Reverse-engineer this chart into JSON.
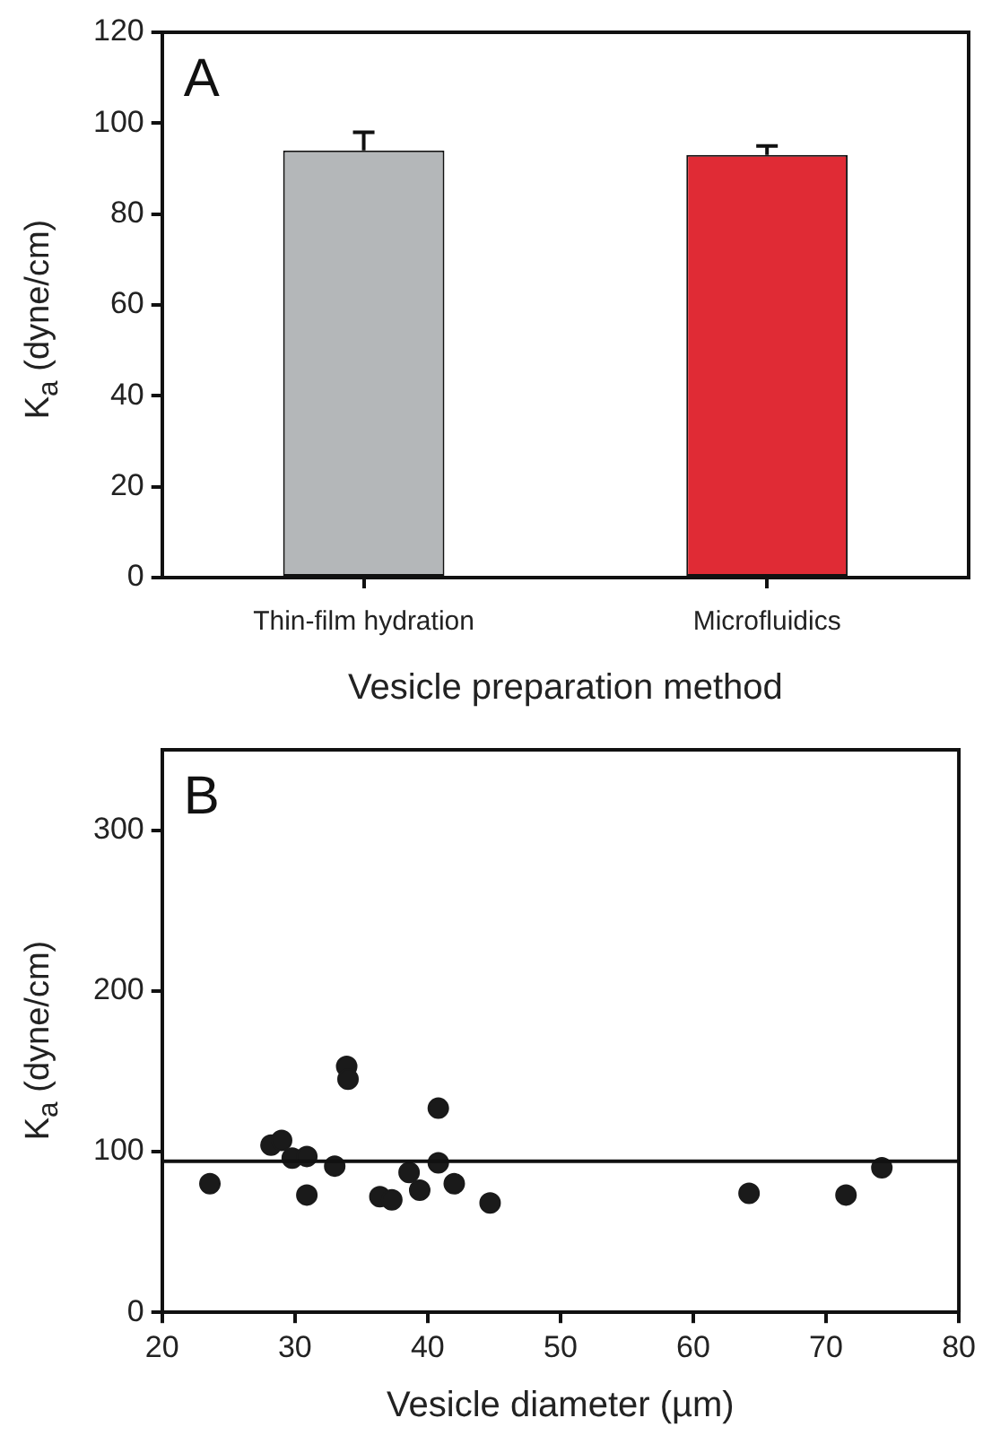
{
  "chart_data": [
    {
      "type": "bar",
      "categories": [
        "Thin-film hydration",
        "Microfluidics"
      ],
      "values": [
        94,
        93
      ],
      "colors": [
        "#b4b7b9",
        "#e02b35"
      ],
      "errors": [
        [
          94,
          98
        ],
        [
          93,
          95
        ]
      ],
      "ylim": [
        0,
        120
      ],
      "yticks": [
        0,
        20,
        40,
        60,
        80,
        100,
        120
      ],
      "xlabel": "Vesicle preparation method",
      "ylabel": "K$_{a}$ (dyne/cm)",
      "annotations": [
        "A"
      ]
    },
    {
      "type": "scatter",
      "x": [
        23.6,
        28.2,
        29.0,
        29.8,
        30.9,
        30.9,
        33.0,
        33.9,
        34.0,
        36.4,
        37.3,
        38.6,
        39.4,
        40.8,
        40.8,
        42.0,
        44.7,
        64.2,
        71.5,
        74.2
      ],
      "values": [
        80,
        104,
        107,
        96,
        97,
        73,
        91,
        153,
        145,
        72,
        70,
        87,
        76,
        127,
        93,
        80,
        68,
        74,
        73,
        90
      ],
      "color": "#1a1a1a",
      "marker": "circle",
      "xlim": [
        20,
        80
      ],
      "xticks": [
        20,
        30,
        40,
        50,
        60,
        70,
        80
      ],
      "ylim": [
        0,
        350
      ],
      "yticks": [
        0,
        100,
        200,
        300
      ],
      "ref_lines": [
        {
          "axis": "y",
          "value": 94
        }
      ],
      "xlabel": "Vesicle diameter (µm)",
      "ylabel": "K$_{a}$ (dyne/cm)",
      "annotations": [
        "B"
      ]
    }
  ]
}
